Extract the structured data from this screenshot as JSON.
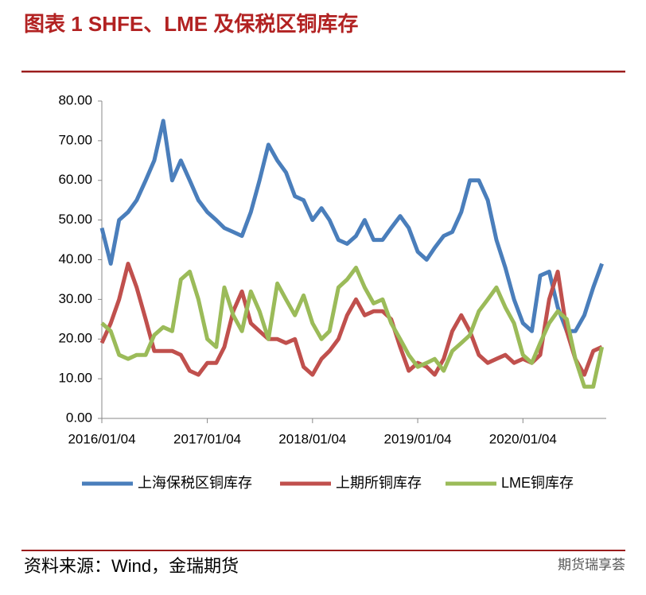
{
  "chart_data": {
    "type": "line",
    "title": "图表 1 SHFE、LME 及保税区铜库存",
    "source": "资料来源：Wind，金瑞期货",
    "watermark": "期货瑞享荟",
    "x": [
      "2016/01/04",
      "2016/02/04",
      "2016/03/04",
      "2016/04/04",
      "2016/05/04",
      "2016/06/04",
      "2016/07/04",
      "2016/08/04",
      "2016/09/04",
      "2016/10/04",
      "2016/11/04",
      "2016/12/04",
      "2017/01/04",
      "2017/02/04",
      "2017/03/04",
      "2017/04/04",
      "2017/05/04",
      "2017/06/04",
      "2017/07/04",
      "2017/08/04",
      "2017/09/04",
      "2017/10/04",
      "2017/11/04",
      "2017/12/04",
      "2018/01/04",
      "2018/02/04",
      "2018/03/04",
      "2018/04/04",
      "2018/05/04",
      "2018/06/04",
      "2018/07/04",
      "2018/08/04",
      "2018/09/04",
      "2018/10/04",
      "2018/11/04",
      "2018/12/04",
      "2019/01/04",
      "2019/02/04",
      "2019/03/04",
      "2019/04/04",
      "2019/05/04",
      "2019/06/04",
      "2019/07/04",
      "2019/08/04",
      "2019/09/04",
      "2019/10/04",
      "2019/11/04",
      "2019/12/04",
      "2020/01/04",
      "2020/02/04",
      "2020/03/04",
      "2020/04/04",
      "2020/05/04",
      "2020/06/04",
      "2020/07/04",
      "2020/08/04",
      "2020/09/04",
      "2020/10/04"
    ],
    "series": [
      {
        "name": "上海保税区铜库存",
        "color": "#4a7ebb",
        "values": [
          48,
          39,
          50,
          52,
          55,
          60,
          65,
          75,
          60,
          65,
          60,
          55,
          52,
          50,
          48,
          47,
          46,
          52,
          60,
          69,
          65,
          62,
          56,
          55,
          50,
          53,
          50,
          45,
          44,
          46,
          50,
          45,
          45,
          48,
          51,
          48,
          42,
          40,
          43,
          46,
          47,
          52,
          60,
          60,
          55,
          45,
          38,
          30,
          24,
          22,
          36,
          37,
          28,
          22,
          22,
          26,
          33,
          39
        ]
      },
      {
        "name": "上期所铜库存",
        "color": "#c0504d",
        "values": [
          19,
          24,
          30,
          39,
          33,
          25,
          17,
          17,
          17,
          16,
          12,
          11,
          14,
          14,
          18,
          27,
          32,
          24,
          22,
          20,
          20,
          19,
          20,
          13,
          11,
          15,
          17,
          20,
          26,
          30,
          26,
          27,
          27,
          25,
          18,
          12,
          14,
          13,
          11,
          15,
          22,
          26,
          22,
          16,
          14,
          15,
          16,
          14,
          15,
          14,
          16,
          30,
          37,
          22,
          15,
          11,
          17,
          18
        ]
      },
      {
        "name": "LME铜库存",
        "color": "#9bbb59",
        "values": [
          24,
          22,
          16,
          15,
          16,
          16,
          21,
          23,
          22,
          35,
          37,
          30,
          20,
          18,
          33,
          26,
          22,
          32,
          27,
          20,
          34,
          30,
          26,
          31,
          24,
          20,
          22,
          33,
          35,
          38,
          33,
          29,
          30,
          24,
          20,
          16,
          13,
          14,
          15,
          12,
          17,
          19,
          21,
          27,
          30,
          33,
          28,
          24,
          16,
          14,
          19,
          24,
          27,
          25,
          15,
          8,
          8,
          18
        ]
      }
    ],
    "xlim": [
      "2016/01/04",
      "2020/10/19"
    ],
    "xticks": [
      "2016/01/04",
      "2017/01/04",
      "2018/01/04",
      "2019/01/04",
      "2020/01/04"
    ],
    "ylim": [
      0,
      80
    ],
    "yticks": [
      {
        "value": 0,
        "label": "0.00"
      },
      {
        "value": 10,
        "label": "10.00"
      },
      {
        "value": 20,
        "label": "20.00"
      },
      {
        "value": 30,
        "label": "30.00"
      },
      {
        "value": 40,
        "label": "40.00"
      },
      {
        "value": 50,
        "label": "50.00"
      },
      {
        "value": 60,
        "label": "60.00"
      },
      {
        "value": 70,
        "label": "70.00"
      },
      {
        "value": 80,
        "label": "80.00"
      }
    ]
  }
}
